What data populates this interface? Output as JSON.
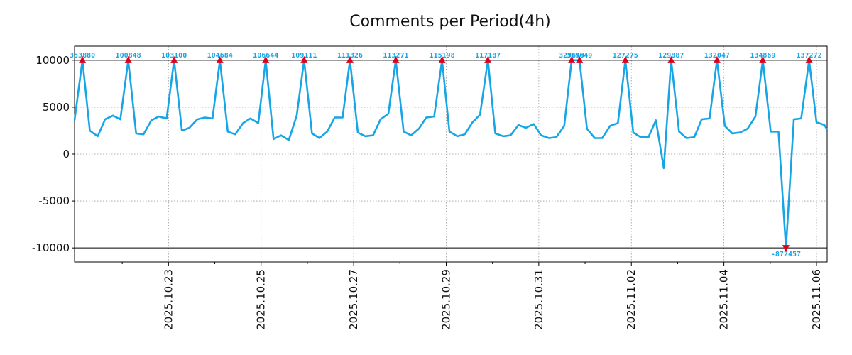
{
  "chart_data": {
    "type": "line",
    "title": "Comments per Period(4h)",
    "xlabel": "",
    "ylabel": "",
    "ylim": [
      -11500,
      11500
    ],
    "clip": [
      -10000,
      10000
    ],
    "yticks": [
      10000,
      5000,
      0,
      -5000,
      -10000
    ],
    "yticklabels": [
      "10000",
      "5000",
      "0",
      "-5000",
      "-10000"
    ],
    "xlim_days": [
      -1.03,
      15.23
    ],
    "xtick_days": [
      1,
      3,
      5,
      7,
      9,
      11,
      13,
      15
    ],
    "xticklabels": [
      "2025.10.23",
      "2025.10.25",
      "2025.10.27",
      "2025.10.29",
      "2025.10.31",
      "2025.11.02",
      "2025.11.04",
      "2025.11.06"
    ],
    "minor_xtick_days": [
      0,
      2,
      4,
      6,
      8,
      10,
      12,
      14
    ],
    "line_color": "#16a5e6",
    "marker_color": "#e0001b",
    "series": [
      {
        "name": "Comments",
        "x": [
          -1.03,
          -0.86,
          -0.7,
          -0.53,
          -0.37,
          -0.2,
          -0.04,
          0.13,
          0.3,
          0.46,
          0.63,
          0.79,
          0.96,
          1.12,
          1.29,
          1.45,
          1.62,
          1.78,
          1.95,
          2.11,
          2.28,
          2.44,
          2.61,
          2.77,
          2.94,
          3.1,
          3.27,
          3.43,
          3.6,
          3.77,
          3.93,
          4.1,
          4.26,
          4.43,
          4.59,
          4.76,
          4.92,
          5.09,
          5.25,
          5.42,
          5.58,
          5.75,
          5.91,
          6.08,
          6.24,
          6.41,
          6.57,
          6.74,
          6.91,
          7.07,
          7.24,
          7.4,
          7.57,
          7.73,
          7.9,
          8.06,
          8.23,
          8.39,
          8.56,
          8.72,
          8.89,
          9.05,
          9.22,
          9.38,
          9.55,
          9.71,
          9.88,
          10.04,
          10.21,
          10.37,
          10.54,
          10.71,
          10.87,
          11.04,
          11.2,
          11.37,
          11.53,
          11.7,
          11.86,
          12.03,
          12.19,
          12.36,
          12.52,
          12.69,
          12.85,
          13.02,
          13.18,
          13.35,
          13.51,
          13.68,
          13.84,
          14.01,
          14.18,
          14.34,
          14.51,
          14.67,
          14.84,
          15.0,
          15.17,
          15.23
        ],
        "y": [
          3600,
          10000,
          2500,
          1900,
          3700,
          4100,
          3700,
          10000,
          2200,
          2100,
          3600,
          4000,
          3800,
          10000,
          2500,
          2800,
          3700,
          3900,
          3800,
          10000,
          2400,
          2100,
          3300,
          3800,
          3300,
          10000,
          1600,
          2000,
          1500,
          4100,
          10000,
          2200,
          1700,
          2400,
          3900,
          3900,
          10000,
          2300,
          1900,
          2000,
          3700,
          4300,
          10000,
          2400,
          2000,
          2700,
          3900,
          4000,
          10000,
          2400,
          1900,
          2100,
          3400,
          4200,
          10000,
          2200,
          1900,
          2000,
          3100,
          2800,
          3200,
          2000,
          1700,
          1800,
          3000,
          10000,
          10000,
          2700,
          1700,
          1700,
          3000,
          3300,
          10000,
          2300,
          1800,
          1800,
          3600,
          -1500,
          10000,
          2400,
          1700,
          1800,
          3700,
          3800,
          10000,
          3000,
          2200,
          2300,
          2700,
          4000,
          10000,
          2400,
          2400,
          -10000,
          3700,
          3800,
          10000,
          3400,
          3100,
          2600
        ]
      }
    ],
    "annotations": [
      {
        "x": -0.86,
        "y": 10000,
        "text": "353880"
      },
      {
        "x": 0.13,
        "y": 10000,
        "text": "100848"
      },
      {
        "x": 1.12,
        "y": 10000,
        "text": "103100"
      },
      {
        "x": 2.11,
        "y": 10000,
        "text": "104684"
      },
      {
        "x": 3.1,
        "y": 10000,
        "text": "106644"
      },
      {
        "x": 3.93,
        "y": 10000,
        "text": "109111"
      },
      {
        "x": 4.92,
        "y": 10000,
        "text": "111326"
      },
      {
        "x": 5.91,
        "y": 10000,
        "text": "113271"
      },
      {
        "x": 6.91,
        "y": 10000,
        "text": "115198"
      },
      {
        "x": 7.9,
        "y": 10000,
        "text": "117187"
      },
      {
        "x": 9.71,
        "y": 10000,
        "text": "329649"
      },
      {
        "x": 9.88,
        "y": 10000,
        "text": "329649"
      },
      {
        "x": 10.87,
        "y": 10000,
        "text": "127275"
      },
      {
        "x": 11.86,
        "y": 10000,
        "text": "129887"
      },
      {
        "x": 12.85,
        "y": 10000,
        "text": "132047"
      },
      {
        "x": 13.84,
        "y": 10000,
        "text": "134869"
      },
      {
        "x": 14.34,
        "y": -10000,
        "text": "-872457"
      },
      {
        "x": 14.84,
        "y": 10000,
        "text": "137272"
      }
    ]
  }
}
